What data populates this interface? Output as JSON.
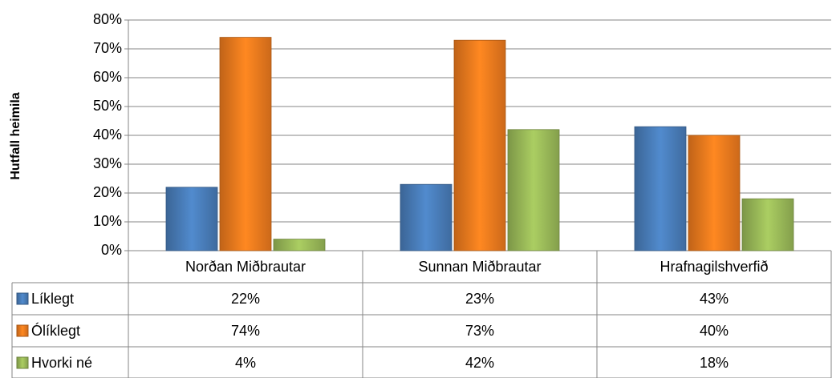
{
  "chart_data": {
    "type": "bar",
    "y_axis_label": "Hutfall heimila",
    "categories": [
      "Norðan Miðbrautar",
      "Sunnan Miðbrautar",
      "Hrafnagilshverfið"
    ],
    "series": [
      {
        "name": "Líklegt",
        "color": "#4a7ebb",
        "values": [
          22,
          23,
          43
        ],
        "value_labels": [
          "22%",
          "23%",
          "43%"
        ]
      },
      {
        "name": "Ólíklegt",
        "color": "#f07c1e",
        "values": [
          74,
          73,
          40
        ],
        "value_labels": [
          "74%",
          "73%",
          "40%"
        ]
      },
      {
        "name": "Hvorki né",
        "color": "#9bbb59",
        "values": [
          4,
          42,
          18
        ],
        "value_labels": [
          "4%",
          "42%",
          "18%"
        ]
      }
    ],
    "ylim": [
      0,
      80
    ],
    "yticks": [
      {
        "value": 0,
        "label": "0%"
      },
      {
        "value": 10,
        "label": "10%"
      },
      {
        "value": 20,
        "label": "20%"
      },
      {
        "value": 30,
        "label": "30%"
      },
      {
        "value": 40,
        "label": "40%"
      },
      {
        "value": 50,
        "label": "50%"
      },
      {
        "value": 60,
        "label": "60%"
      },
      {
        "value": 70,
        "label": "70%"
      },
      {
        "value": 80,
        "label": "80%"
      }
    ],
    "grid": true
  }
}
